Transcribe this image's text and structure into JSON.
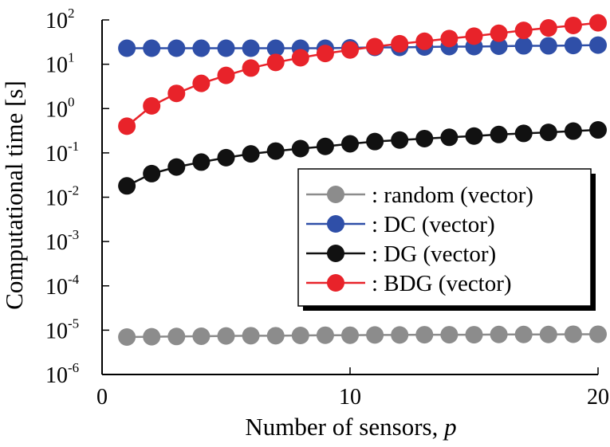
{
  "chart_data": {
    "type": "line",
    "title": "",
    "xlabel_text": "Number of sensors, ",
    "xlabel_var": "p",
    "ylabel": "Computational time [s]",
    "x": [
      1,
      2,
      3,
      4,
      5,
      6,
      7,
      8,
      9,
      10,
      11,
      12,
      13,
      14,
      15,
      16,
      17,
      18,
      19,
      20
    ],
    "xlim": [
      0,
      20
    ],
    "ylim": [
      1e-06,
      100
    ],
    "yscale": "log",
    "xticks": [
      {
        "value": 0,
        "label": "0"
      },
      {
        "value": 10,
        "label": "10"
      },
      {
        "value": 20,
        "label": "20"
      }
    ],
    "yticks": [
      {
        "exp": 2,
        "base": "10",
        "sup": "2"
      },
      {
        "exp": 1,
        "base": "10",
        "sup": "1"
      },
      {
        "exp": 0,
        "base": "10",
        "sup": "0"
      },
      {
        "exp": -1,
        "base": "10",
        "sup": "-1"
      },
      {
        "exp": -2,
        "base": "10",
        "sup": "-2"
      },
      {
        "exp": -3,
        "base": "10",
        "sup": "-3"
      },
      {
        "exp": -4,
        "base": "10",
        "sup": "-4"
      },
      {
        "exp": -5,
        "base": "10",
        "sup": "-5"
      },
      {
        "exp": -6,
        "base": "10",
        "sup": "-6"
      }
    ],
    "grid": false,
    "legend_position": "center-right",
    "series": [
      {
        "name": ": random (vector)",
        "color": "#8c8c8c",
        "values": [
          7e-06,
          7.1e-06,
          7.2e-06,
          7.3e-06,
          7.4e-06,
          7.5e-06,
          7.5e-06,
          7.6e-06,
          7.7e-06,
          7.7e-06,
          7.8e-06,
          7.8e-06,
          7.9e-06,
          7.9e-06,
          7.9e-06,
          8e-06,
          8e-06,
          8e-06,
          8.1e-06,
          8.1e-06
        ]
      },
      {
        "name": ": DC (vector)",
        "color": "#2f4fa8",
        "values": [
          23,
          23,
          23,
          23,
          23,
          23,
          23,
          23,
          23,
          23.5,
          24,
          24,
          24.5,
          25,
          25,
          25.5,
          26,
          26,
          26.5,
          27
        ]
      },
      {
        "name": ": DG (vector)",
        "color": "#111111",
        "values": [
          0.018,
          0.034,
          0.048,
          0.062,
          0.078,
          0.095,
          0.11,
          0.125,
          0.14,
          0.16,
          0.18,
          0.195,
          0.21,
          0.225,
          0.24,
          0.26,
          0.275,
          0.29,
          0.31,
          0.33
        ]
      },
      {
        "name": ": BDG (vector)",
        "color": "#e8232a",
        "values": [
          0.4,
          1.15,
          2.2,
          3.7,
          5.6,
          8.2,
          11,
          14,
          17.5,
          21,
          25,
          29,
          33,
          38,
          43,
          50,
          58,
          66,
          75,
          86
        ]
      }
    ]
  }
}
